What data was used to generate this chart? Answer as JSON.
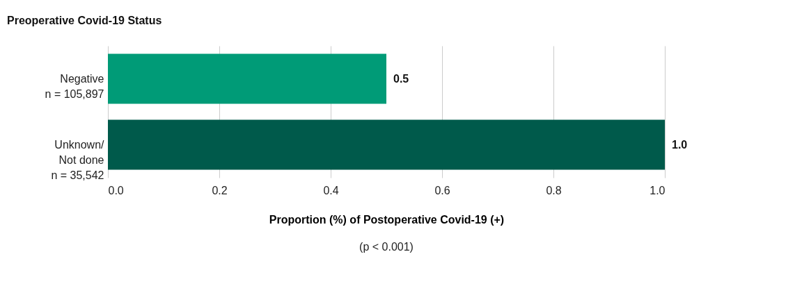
{
  "chart_data": {
    "type": "bar",
    "orientation": "horizontal",
    "title": "Preoperative Covid-19 Status",
    "categories": [
      "Negative\nn = 105,897",
      "Unknown/\nNot done\nn = 35,542"
    ],
    "values": [
      0.5,
      1.0
    ],
    "colors": [
      "#009b77",
      "#005a4b"
    ],
    "value_labels": [
      "0.5",
      "1.0"
    ],
    "xlabel": "Proportion (%) of Postoperative Covid-19 (+)",
    "annotations": [
      "(p < 0.001)"
    ],
    "xlim": [
      0,
      1
    ],
    "xticks": [
      {
        "value": 0,
        "label": "0.0"
      },
      0.2,
      0.4,
      0.6,
      0.8,
      {
        "value": 1,
        "label": "1.0"
      }
    ],
    "grid": "x",
    "legend": false
  }
}
